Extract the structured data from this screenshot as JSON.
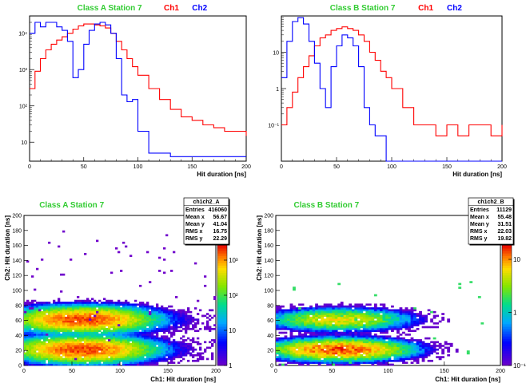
{
  "chart_data": [
    {
      "type": "line",
      "title": "Class A Station 7",
      "legend": [
        "Ch1",
        "Ch2"
      ],
      "xlabel": "Hit duration [ns]",
      "ylabel": "",
      "xlim": [
        0,
        200
      ],
      "ylim": [
        3,
        30000
      ],
      "yscale": "log",
      "x_ticks": [
        "0",
        "50",
        "100",
        "150",
        "200"
      ],
      "y_ticks": [
        "10",
        "10²",
        "10³",
        "10⁴"
      ],
      "series": [
        {
          "name": "Ch1",
          "color": "#ff0000",
          "x": [
            0,
            5,
            10,
            15,
            20,
            25,
            30,
            35,
            40,
            45,
            50,
            55,
            60,
            65,
            70,
            75,
            80,
            85,
            90,
            95,
            100,
            110,
            120,
            130,
            140,
            150,
            160,
            170,
            180,
            190,
            200
          ],
          "y": [
            300,
            900,
            2000,
            3500,
            5000,
            6500,
            8000,
            10000,
            13000,
            16000,
            18000,
            18000,
            17000,
            16000,
            14000,
            10000,
            6000,
            3500,
            2000,
            1200,
            700,
            300,
            150,
            80,
            50,
            40,
            30,
            25,
            20,
            20,
            15
          ]
        },
        {
          "name": "Ch2",
          "color": "#0000ff",
          "x": [
            0,
            5,
            10,
            15,
            20,
            25,
            30,
            35,
            40,
            45,
            50,
            55,
            60,
            65,
            70,
            75,
            80,
            85,
            90,
            95,
            100,
            110,
            120,
            130,
            140,
            150,
            160,
            170,
            180,
            190,
            200
          ],
          "y": [
            10000,
            20000,
            15000,
            20000,
            20000,
            15000,
            12000,
            6000,
            600,
            1000,
            5000,
            12000,
            18000,
            20000,
            17000,
            10000,
            2000,
            200,
            130,
            150,
            20,
            5,
            5,
            4,
            4,
            4,
            4,
            4,
            4,
            4,
            4
          ]
        }
      ]
    },
    {
      "type": "line",
      "title": "Class B Station 7",
      "legend": [
        "Ch1",
        "Ch2"
      ],
      "xlabel": "Hit duration [ns]",
      "ylabel": "",
      "xlim": [
        0,
        200
      ],
      "ylim": [
        0.1,
        1000
      ],
      "yscale": "log",
      "x_ticks": [
        "0",
        "50",
        "100",
        "150",
        "200"
      ],
      "y_ticks": [
        "10⁻¹",
        "1",
        "10",
        "10²",
        "10³"
      ],
      "series": [
        {
          "name": "Ch1",
          "color": "#ff0000",
          "x": [
            0,
            5,
            10,
            15,
            20,
            25,
            30,
            35,
            40,
            45,
            50,
            55,
            60,
            65,
            70,
            75,
            80,
            85,
            90,
            95,
            100,
            110,
            120,
            130,
            140,
            150,
            160,
            170,
            180,
            190,
            200
          ],
          "y": [
            1,
            3,
            8,
            20,
            40,
            80,
            150,
            250,
            300,
            400,
            450,
            500,
            450,
            400,
            300,
            200,
            100,
            60,
            30,
            20,
            10,
            3,
            1,
            1,
            0.5,
            1,
            0.5,
            1,
            1,
            0.5,
            1
          ]
        },
        {
          "name": "Ch2",
          "color": "#0000ff",
          "x": [
            0,
            5,
            10,
            15,
            20,
            25,
            30,
            35,
            40,
            45,
            50,
            55,
            60,
            65,
            70,
            75,
            80,
            85,
            90,
            95,
            100,
            110,
            120,
            130,
            140,
            150,
            160,
            170,
            180,
            190,
            200
          ],
          "y": [
            20,
            200,
            700,
            900,
            600,
            200,
            50,
            10,
            3,
            40,
            150,
            300,
            250,
            150,
            40,
            3,
            1,
            0.5,
            0.5,
            0.1,
            0.1,
            0.1,
            0.1,
            0.1,
            0.1,
            0.1,
            0.1,
            0.1,
            0.1,
            0.1,
            0.1
          ]
        }
      ]
    },
    {
      "type": "heatmap",
      "title": "Class A Station 7",
      "xlabel": "Ch1: Hit duration [ns]",
      "ylabel": "Ch2: Hit duration [ns]",
      "xlim": [
        0,
        200
      ],
      "ylim": [
        0,
        200
      ],
      "x_ticks": [
        "0",
        "50",
        "100",
        "150",
        "200"
      ],
      "y_ticks": [
        "0",
        "20",
        "40",
        "60",
        "80",
        "100",
        "120",
        "140",
        "160",
        "180",
        "200"
      ],
      "z_ticks": [
        "1",
        "10",
        "10²",
        "10³"
      ],
      "zlim": [
        1,
        3000
      ],
      "stats": {
        "name": "ch1ch2_A",
        "rows": [
          [
            "Entries",
            "416060"
          ],
          [
            "Mean x",
            "56.67"
          ],
          [
            "Mean y",
            "41.04"
          ],
          [
            "RMS x",
            "16.75"
          ],
          [
            "RMS y",
            "22.29"
          ]
        ]
      },
      "clusters": [
        {
          "x": 60,
          "y": 60,
          "peak": 2000
        },
        {
          "x": 60,
          "y": 20,
          "peak": 2000
        }
      ]
    },
    {
      "type": "heatmap",
      "title": "Class B Station 7",
      "xlabel": "Ch1: Hit duration [ns]",
      "ylabel": "Ch2: Hit duration [ns]",
      "xlim": [
        0,
        200
      ],
      "ylim": [
        0,
        200
      ],
      "x_ticks": [
        "0",
        "50",
        "100",
        "150",
        "200"
      ],
      "y_ticks": [
        "0",
        "20",
        "40",
        "60",
        "80",
        "100",
        "120",
        "140",
        "160",
        "180",
        "200"
      ],
      "z_ticks": [
        "10⁻¹",
        "1",
        "10"
      ],
      "zlim": [
        0.1,
        20
      ],
      "stats": {
        "name": "ch1ch2_B",
        "rows": [
          [
            "Entries",
            "11129"
          ],
          [
            "Mean x",
            "55.48"
          ],
          [
            "Mean y",
            "31.51"
          ],
          [
            "RMS x",
            "22.03"
          ],
          [
            "RMS y",
            "19.82"
          ]
        ]
      },
      "clusters": [
        {
          "x": 55,
          "y": 60,
          "peak": 6
        },
        {
          "x": 55,
          "y": 20,
          "peak": 15
        }
      ]
    }
  ]
}
